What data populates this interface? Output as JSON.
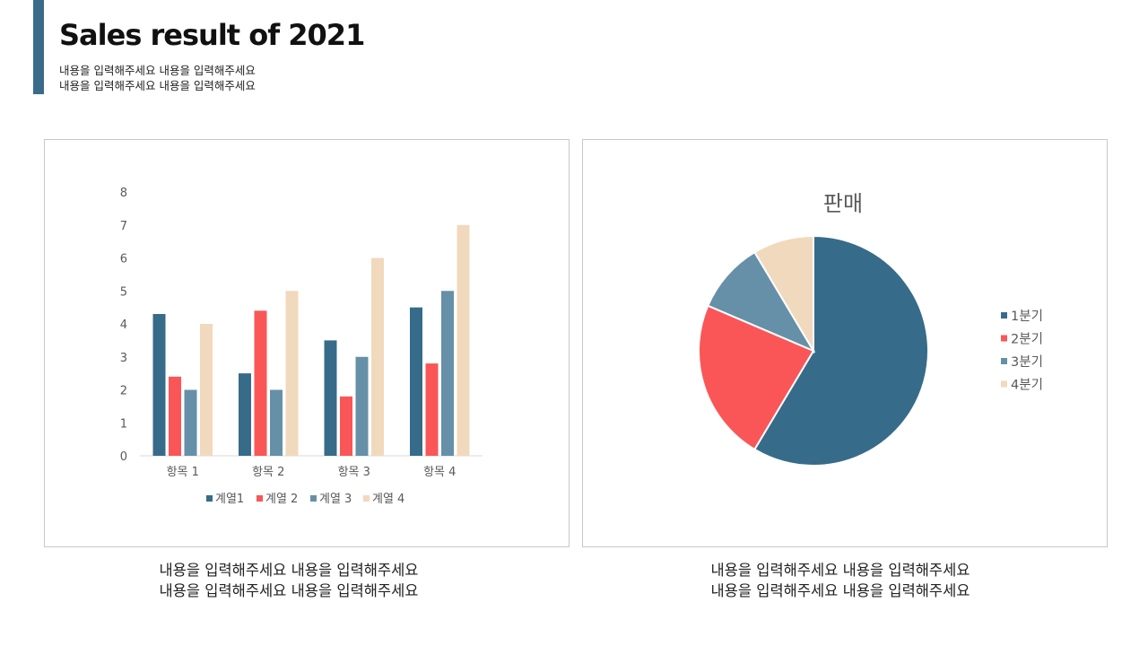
{
  "header": {
    "title": "Sales result of 2021",
    "subtitle_lines": [
      "내용을 입력해주세요 내용을 입력해주세요",
      "내용을 입력해주세요 내용을 입력해주세요"
    ]
  },
  "colors": {
    "accent": "#3a6c8a",
    "series": [
      "#376b8a",
      "#fa5657",
      "#6590a8",
      "#f1d9bd"
    ]
  },
  "chart_data": [
    {
      "type": "bar",
      "title": "",
      "xlabel": "",
      "ylabel": "",
      "categories": [
        "항목 1",
        "항목 2",
        "항목 3",
        "항목 4"
      ],
      "series": [
        {
          "name": "계열1",
          "values": [
            4.3,
            2.5,
            3.5,
            4.5
          ]
        },
        {
          "name": "계열 2",
          "values": [
            2.4,
            4.4,
            1.8,
            2.8
          ]
        },
        {
          "name": "계열 3",
          "values": [
            2,
            2,
            3,
            5
          ]
        },
        {
          "name": "계열 4",
          "values": [
            4,
            5,
            6,
            7
          ]
        }
      ],
      "ylim": [
        0,
        8
      ],
      "yticks": [
        "0",
        "1",
        "2",
        "3",
        "4",
        "5",
        "6",
        "7",
        "8"
      ],
      "grid": false,
      "legend": "bottom"
    },
    {
      "type": "pie",
      "title": "판매",
      "labels": [
        "1분기",
        "2분기",
        "3분기",
        "4분기"
      ],
      "values": [
        8.2,
        3.2,
        1.4,
        1.2
      ],
      "legend": "right"
    }
  ],
  "captions": {
    "left": [
      "내용을 입력해주세요 내용을 입력해주세요",
      "내용을 입력해주세요 내용을 입력해주세요"
    ],
    "right": [
      "내용을 입력해주세요 내용을 입력해주세요",
      "내용을 입력해주세요 내용을 입력해주세요"
    ]
  }
}
